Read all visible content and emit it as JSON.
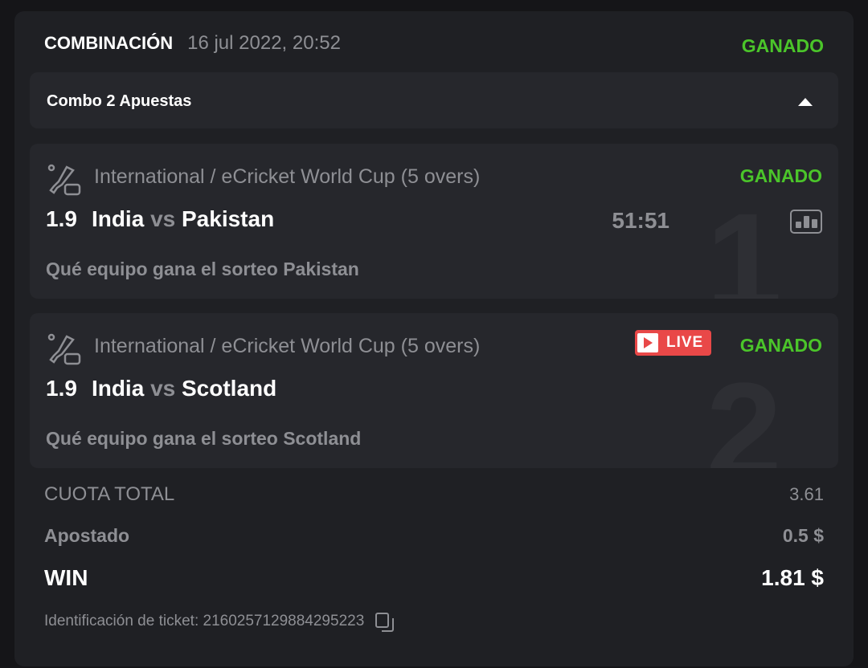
{
  "header": {
    "title": "COMBINACIÓN",
    "date": "16 jul 2022, 20:52",
    "status": "GANADO"
  },
  "combo": {
    "label": "Combo 2 Apuestas"
  },
  "legs": [
    {
      "index": "1",
      "league": "International / eCricket World Cup (5 overs)",
      "odd": "1.9",
      "home": "India",
      "vs": "vs",
      "away": "Pakistan",
      "pick": "Qué equipo gana el sorteo Pakistan",
      "status": "GANADO",
      "score": "51:51"
    },
    {
      "index": "2",
      "league": "International / eCricket World Cup (5 overs)",
      "odd": "1.9",
      "home": "India",
      "vs": "vs",
      "away": "Scotland",
      "pick": "Qué equipo gana el sorteo Scotland",
      "status": "GANADO",
      "live": "LIVE"
    }
  ],
  "summary": {
    "total_odds_label": "CUOTA TOTAL",
    "total_odds": "3.61",
    "staked_label": "Apostado",
    "staked": "0.5 $",
    "win_label": "WIN",
    "win": "1.81 $"
  },
  "ticket": {
    "label": "Identificación de ticket: 2160257129884295223"
  },
  "colors": {
    "won": "#4bc52a",
    "live": "#e94848"
  }
}
